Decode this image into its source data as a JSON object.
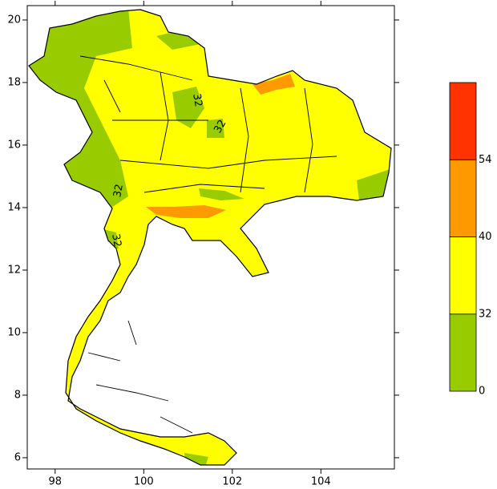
{
  "chart_data": {
    "type": "map",
    "xlim": [
      97.37,
      105.66
    ],
    "ylim": [
      5.64,
      20.46
    ],
    "xticks": [
      98,
      100,
      102,
      104
    ],
    "yticks": [
      6,
      8,
      10,
      12,
      14,
      16,
      18,
      20
    ],
    "colorbar": {
      "levels": [
        0,
        32,
        40,
        54
      ],
      "colors": [
        "#99cc00",
        "#ffff00",
        "#ff9900",
        "#ff3300"
      ]
    },
    "contour_labels": [
      "32",
      "32",
      "32",
      "32"
    ]
  }
}
